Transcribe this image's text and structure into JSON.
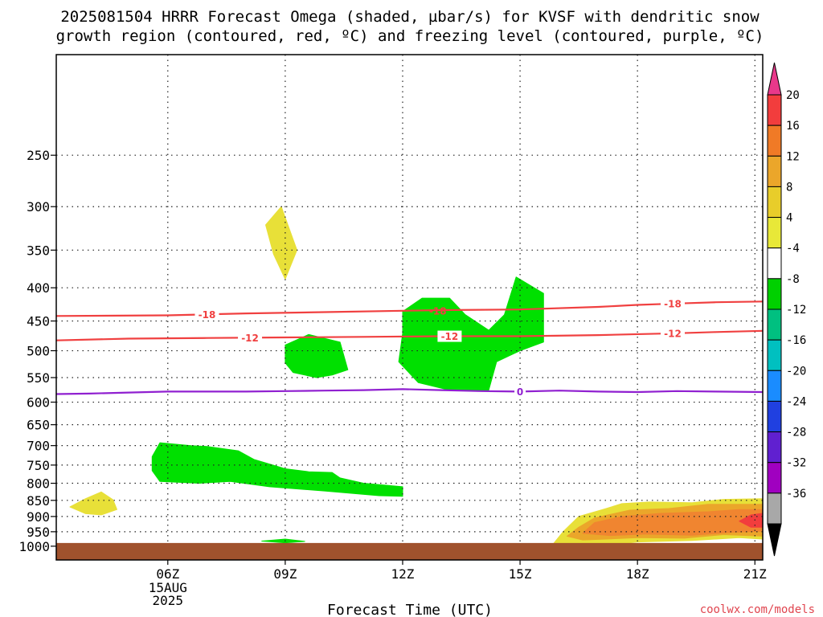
{
  "title": {
    "line1": "2025081504 HRRR Forecast Omega (shaded, µbar/s) for KVSF with dendritic snow",
    "line2": "growth region (contoured, red, ºC) and freezing level (contoured, purple, ºC)"
  },
  "credit": "coolwx.com/models",
  "chart_data": {
    "type": "heatmap",
    "xlabel": "Forecast Time (UTC)",
    "x_unit": "hours since 2025-08-15 03Z",
    "xlim": [
      0.15,
      18.2
    ],
    "ylim_hpa": [
      1050,
      175
    ],
    "y_scale": "log-pressure",
    "grid": true,
    "x_ticks": [
      {
        "x": 3,
        "label": "06Z",
        "sub": [
          "15AUG",
          "2025"
        ]
      },
      {
        "x": 6,
        "label": "09Z"
      },
      {
        "x": 9,
        "label": "12Z"
      },
      {
        "x": 12,
        "label": "15Z"
      },
      {
        "x": 15,
        "label": "18Z"
      },
      {
        "x": 18,
        "label": "21Z"
      }
    ],
    "y_ticks": [
      250,
      300,
      350,
      400,
      450,
      500,
      550,
      600,
      650,
      700,
      750,
      800,
      850,
      900,
      950,
      1000
    ],
    "ground_surface_hpa": 1000,
    "ground_color": "#a0522d",
    "colorbar": {
      "ticks": [
        "20",
        "16",
        "12",
        "8",
        "4",
        "-4",
        "-8",
        "-12",
        "-16",
        "-20",
        "-24",
        "-28",
        "-32",
        "-36"
      ],
      "bins": [
        {
          "color": "#e8388a"
        },
        {
          "color": "#f23d3d"
        },
        {
          "color": "#f07a26"
        },
        {
          "color": "#eba62a"
        },
        {
          "color": "#e8cd2a"
        },
        {
          "color": "#e8e838"
        },
        {
          "color": "#ffffff"
        },
        {
          "color": "#00d000"
        },
        {
          "color": "#00c080"
        },
        {
          "color": "#00c0c0"
        },
        {
          "color": "#1a8cff"
        },
        {
          "color": "#2040e0"
        },
        {
          "color": "#6020d0"
        },
        {
          "color": "#a000c0"
        },
        {
          "color": "#a8a8a8"
        },
        {
          "color": "#000000"
        }
      ]
    },
    "shaded_regions": [
      {
        "range": "-4 to -8",
        "color": "#00e000",
        "points": [
          [
            2.6,
            728
          ],
          [
            2.8,
            693
          ],
          [
            3.6,
            700
          ],
          [
            4,
            702
          ],
          [
            4.8,
            713
          ],
          [
            5.2,
            735
          ],
          [
            6,
            760
          ],
          [
            6.6,
            768
          ],
          [
            7.2,
            770
          ],
          [
            7.4,
            785
          ],
          [
            8,
            800
          ],
          [
            9,
            810
          ],
          [
            9,
            838
          ],
          [
            8.4,
            836
          ],
          [
            7,
            822
          ],
          [
            5.6,
            810
          ],
          [
            4.6,
            795
          ],
          [
            3.8,
            800
          ],
          [
            2.8,
            795
          ],
          [
            2.6,
            765
          ]
        ]
      },
      {
        "range": "-4 to -8",
        "color": "#00e000",
        "points": [
          [
            6,
            490
          ],
          [
            6.6,
            472
          ],
          [
            7.4,
            485
          ],
          [
            7.6,
            535
          ],
          [
            7.2,
            545
          ],
          [
            6.8,
            550
          ],
          [
            6.2,
            540
          ],
          [
            6,
            522
          ]
        ]
      },
      {
        "range": "-4 to -8",
        "color": "#00e000",
        "points": [
          [
            9,
            435
          ],
          [
            9.5,
            415
          ],
          [
            10.2,
            415
          ],
          [
            10.6,
            440
          ],
          [
            11.2,
            465
          ],
          [
            11.6,
            440
          ],
          [
            11.9,
            385
          ],
          [
            12.6,
            408
          ],
          [
            12.6,
            485
          ],
          [
            12,
            500
          ],
          [
            11.4,
            520
          ],
          [
            11.2,
            575
          ],
          [
            10.2,
            575
          ],
          [
            9.4,
            560
          ],
          [
            8.9,
            520
          ],
          [
            9,
            470
          ]
        ]
      },
      {
        "range": "-4 to -8",
        "color": "#00e000",
        "points": [
          [
            5.4,
            982
          ],
          [
            6,
            975
          ],
          [
            6.5,
            983
          ],
          [
            6,
            988
          ]
        ]
      },
      {
        "range": "4 to 8",
        "color": "#e8e038",
        "points": [
          [
            5.5,
            320
          ],
          [
            5.9,
            300
          ],
          [
            6.3,
            350
          ],
          [
            6.0,
            388
          ],
          [
            5.7,
            355
          ]
        ]
      },
      {
        "range": "4 to 8",
        "color": "#e8e038",
        "points": [
          [
            0.5,
            870
          ],
          [
            0.9,
            845
          ],
          [
            1.3,
            825
          ],
          [
            1.6,
            848
          ],
          [
            1.7,
            878
          ],
          [
            1.3,
            895
          ],
          [
            0.9,
            891
          ]
        ]
      },
      {
        "range": "4 to 8",
        "color": "#e8e038",
        "points": [
          [
            12.8,
            1000
          ],
          [
            13.1,
            950
          ],
          [
            13.5,
            900
          ],
          [
            14.2,
            875
          ],
          [
            14.6,
            860
          ],
          [
            15.3,
            855
          ],
          [
            16.4,
            857
          ],
          [
            17.2,
            847
          ],
          [
            18.2,
            845
          ],
          [
            18.2,
            975
          ],
          [
            17.6,
            970
          ],
          [
            16.4,
            980
          ],
          [
            15,
            985
          ],
          [
            14,
            1000
          ]
        ]
      },
      {
        "range": "8 to 12",
        "color": "#eba62a",
        "points": [
          [
            13.2,
            965
          ],
          [
            13.5,
            935
          ],
          [
            13.9,
            905
          ],
          [
            14.8,
            880
          ],
          [
            15.8,
            875
          ],
          [
            16.8,
            862
          ],
          [
            18.2,
            862
          ],
          [
            18.2,
            965
          ],
          [
            17.2,
            960
          ],
          [
            16.2,
            972
          ],
          [
            15,
            970
          ],
          [
            14.2,
            975
          ],
          [
            13.6,
            978
          ]
        ]
      },
      {
        "range": "12 to 16",
        "color": "#f08530",
        "points": [
          [
            13.6,
            955
          ],
          [
            13.9,
            920
          ],
          [
            14.6,
            900
          ],
          [
            15.6,
            890
          ],
          [
            16.8,
            885
          ],
          [
            17.6,
            878
          ],
          [
            18.2,
            878
          ],
          [
            18.2,
            948
          ],
          [
            17.4,
            952
          ],
          [
            16.4,
            962
          ],
          [
            15.2,
            958
          ],
          [
            14.3,
            963
          ]
        ]
      },
      {
        "range": "16 to 20",
        "color": "#f23d3d",
        "points": [
          [
            17.6,
            915
          ],
          [
            17.9,
            895
          ],
          [
            18.2,
            890
          ],
          [
            18.2,
            935
          ],
          [
            17.9,
            935
          ]
        ]
      }
    ],
    "contours": [
      {
        "label": "-18",
        "color": "#f04040",
        "label_x": [
          4,
          15.9
        ],
        "points": [
          [
            0.15,
            442
          ],
          [
            3,
            441
          ],
          [
            5,
            438
          ],
          [
            7,
            436
          ],
          [
            9,
            434
          ],
          [
            10,
            433
          ],
          [
            12,
            432
          ],
          [
            14,
            428
          ],
          [
            15,
            425
          ],
          [
            16,
            423
          ],
          [
            17,
            421
          ],
          [
            18.2,
            420
          ]
        ]
      },
      {
        "label": "-18",
        "color": "#f04040",
        "label_x": [
          9.9
        ],
        "label_only": true,
        "points": [
          [
            9.9,
            434
          ]
        ]
      },
      {
        "label": "-12",
        "color": "#f04040",
        "label_x": [
          5.1,
          10.2,
          15.9
        ],
        "points": [
          [
            0.15,
            482
          ],
          [
            2,
            479
          ],
          [
            4,
            478
          ],
          [
            6,
            477
          ],
          [
            8,
            476
          ],
          [
            10,
            475
          ],
          [
            12,
            475
          ],
          [
            14,
            473
          ],
          [
            16,
            470
          ],
          [
            17,
            468
          ],
          [
            18.2,
            466
          ]
        ]
      },
      {
        "label": "0",
        "color": "#9020d0",
        "label_x": [
          12
        ],
        "points": [
          [
            0.15,
            583
          ],
          [
            1,
            582
          ],
          [
            2,
            580
          ],
          [
            3,
            578
          ],
          [
            4,
            578
          ],
          [
            5,
            578
          ],
          [
            6,
            577
          ],
          [
            7,
            576
          ],
          [
            8,
            575
          ],
          [
            9,
            573
          ],
          [
            10,
            575
          ],
          [
            11,
            577
          ],
          [
            12,
            578
          ],
          [
            13,
            576
          ],
          [
            14,
            578
          ],
          [
            15,
            579
          ],
          [
            16,
            577
          ],
          [
            17,
            578
          ],
          [
            18.2,
            579
          ]
        ]
      }
    ]
  }
}
